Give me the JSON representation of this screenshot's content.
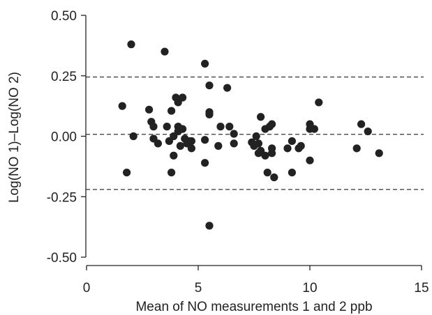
{
  "chart_data": {
    "type": "scatter",
    "title": "",
    "xlabel": "Mean of NO measurements 1 and 2  ppb",
    "ylabel": "Log(NO 1)–Log(NO 2)",
    "xlim": [
      0,
      15
    ],
    "ylim": [
      -0.5,
      0.5
    ],
    "x_ticks": [
      0,
      5,
      10,
      15
    ],
    "x_tick_labels": [
      "0",
      "5",
      "10",
      "15"
    ],
    "y_ticks": [
      0.5,
      0.25,
      0.0,
      -0.25,
      -0.5
    ],
    "y_tick_labels": [
      "0.50",
      "0.25",
      "0.00",
      "-0.25",
      "-0.50"
    ],
    "reference_lines": [
      0.245,
      0.008,
      -0.22
    ],
    "grid": false,
    "point_color": "#222222",
    "line_color": "#333333",
    "points": [
      [
        1.6,
        0.125
      ],
      [
        1.8,
        -0.15
      ],
      [
        2.0,
        0.38
      ],
      [
        2.1,
        0.0
      ],
      [
        2.8,
        0.11
      ],
      [
        2.9,
        0.06
      ],
      [
        3.0,
        0.04
      ],
      [
        3.0,
        -0.01
      ],
      [
        3.2,
        -0.03
      ],
      [
        3.5,
        0.35
      ],
      [
        3.6,
        0.04
      ],
      [
        3.7,
        -0.02
      ],
      [
        3.8,
        0.105
      ],
      [
        3.8,
        -0.15
      ],
      [
        3.9,
        0.0
      ],
      [
        3.9,
        -0.08
      ],
      [
        4.0,
        0.16
      ],
      [
        4.1,
        0.14
      ],
      [
        4.1,
        0.04
      ],
      [
        4.1,
        0.02
      ],
      [
        4.2,
        -0.04
      ],
      [
        4.3,
        0.16
      ],
      [
        4.3,
        0.03
      ],
      [
        4.4,
        -0.01
      ],
      [
        4.5,
        -0.03
      ],
      [
        4.6,
        -0.02
      ],
      [
        4.7,
        -0.05
      ],
      [
        4.7,
        -0.02
      ],
      [
        5.3,
        0.3
      ],
      [
        5.3,
        -0.11
      ],
      [
        5.3,
        -0.015
      ],
      [
        5.5,
        0.21
      ],
      [
        5.5,
        0.1
      ],
      [
        5.5,
        0.09
      ],
      [
        5.5,
        -0.37
      ],
      [
        5.9,
        -0.04
      ],
      [
        6.0,
        0.04
      ],
      [
        6.3,
        0.2
      ],
      [
        6.4,
        0.04
      ],
      [
        6.6,
        0.01
      ],
      [
        6.6,
        -0.03
      ],
      [
        7.4,
        -0.025
      ],
      [
        7.5,
        -0.04
      ],
      [
        7.6,
        0.0
      ],
      [
        7.7,
        -0.03
      ],
      [
        7.7,
        -0.07
      ],
      [
        7.8,
        0.08
      ],
      [
        7.8,
        -0.06
      ],
      [
        8.0,
        -0.08
      ],
      [
        8.0,
        0.03
      ],
      [
        8.1,
        -0.15
      ],
      [
        8.2,
        0.04
      ],
      [
        8.3,
        -0.05
      ],
      [
        8.3,
        -0.07
      ],
      [
        8.3,
        0.05
      ],
      [
        8.4,
        -0.17
      ],
      [
        9.0,
        -0.05
      ],
      [
        9.2,
        -0.02
      ],
      [
        9.2,
        -0.15
      ],
      [
        9.5,
        -0.05
      ],
      [
        9.6,
        -0.04
      ],
      [
        10.0,
        0.05
      ],
      [
        10.0,
        0.03
      ],
      [
        10.0,
        -0.1
      ],
      [
        10.2,
        0.03
      ],
      [
        10.4,
        0.14
      ],
      [
        12.1,
        -0.05
      ],
      [
        12.3,
        0.05
      ],
      [
        12.6,
        0.02
      ],
      [
        13.1,
        -0.07
      ]
    ]
  }
}
